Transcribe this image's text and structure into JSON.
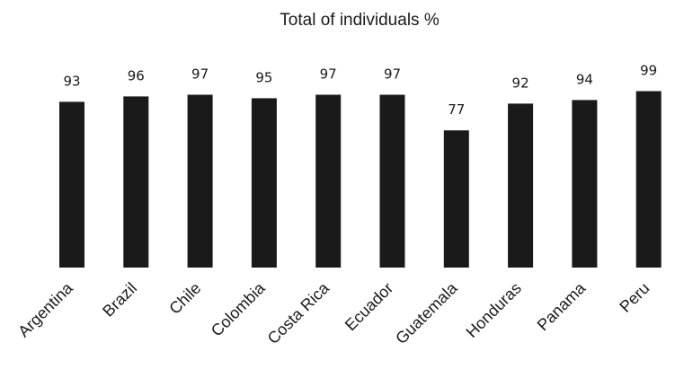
{
  "chart_data": {
    "type": "bar",
    "title": "Total of individuals %",
    "xlabel": "",
    "ylabel": "",
    "categories": [
      "Argentina",
      "Brazil",
      "Chile",
      "Colombia",
      "Costa Rica",
      "Ecuador",
      "Guatemala",
      "Honduras",
      "Panama",
      "Peru"
    ],
    "values": [
      93,
      96,
      97,
      95,
      97,
      97,
      77,
      92,
      94,
      99
    ],
    "data_labels": [
      "93",
      "96",
      "97",
      "95",
      "97",
      "97",
      "77",
      "92",
      "94",
      "99"
    ],
    "ylim": [
      0,
      100
    ],
    "grid": false,
    "legend": "none",
    "bar_color": "#1a1a1a",
    "background_color": "#ffffff"
  }
}
